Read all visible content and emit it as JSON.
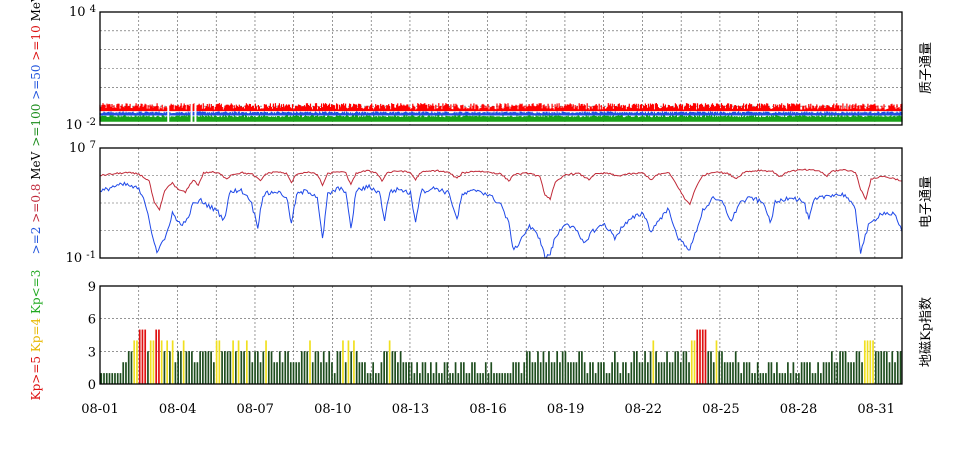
{
  "chart_data": [
    {
      "type": "area",
      "name_cn": "质子通量",
      "yscale": "log",
      "ylim": [
        0.01,
        10000
      ],
      "ytick_labels": [
        {
          "base": "10",
          "exp": "4"
        },
        {
          "base": "10",
          "exp": "-2"
        }
      ],
      "y_axis_label": [
        {
          "text": ">=100",
          "color": "#1a8c1a"
        },
        {
          "text": " >=50",
          "color": "#2255dd"
        },
        {
          "text": " >=10",
          "color": "#dd1111"
        },
        {
          "text": " MeV",
          "color": "#000000"
        }
      ],
      "x_range_days": [
        1,
        32
      ],
      "series": [
        {
          "name": ">=10 MeV",
          "color": "#ff0000",
          "typical": 0.09,
          "low": 0.055
        },
        {
          "name": ">=50 MeV",
          "color": "#1f4fe0",
          "typical": 0.045,
          "low": 0.032
        },
        {
          "name": ">=100 MeV",
          "color": "#18a018",
          "typical": 0.028,
          "low": 0.015
        }
      ],
      "grid": true
    },
    {
      "type": "line",
      "name_cn": "电子通量",
      "yscale": "log",
      "ylim": [
        0.1,
        10000000
      ],
      "ytick_labels": [
        {
          "base": "10",
          "exp": "7"
        },
        {
          "base": "10",
          "exp": "-1"
        }
      ],
      "y_axis_label": [
        {
          "text": ">=2",
          "color": "#2255dd"
        },
        {
          "text": " >=0.8",
          "color": "#c0283a"
        },
        {
          "text": " MeV",
          "color": "#000000"
        }
      ],
      "x_range_days": [
        1,
        32
      ],
      "series": [
        {
          "name": ">=0.8 MeV",
          "color": "#c02a38",
          "keypoints": [
            [
              1.0,
              100000.0
            ],
            [
              1.5,
              130000.0
            ],
            [
              2.0,
              160000.0
            ],
            [
              2.5,
              130000.0
            ],
            [
              2.9,
              40000.0
            ],
            [
              3.1,
              1000.0
            ],
            [
              3.3,
              300.0
            ],
            [
              3.5,
              8000.0
            ],
            [
              3.8,
              30000.0
            ],
            [
              4.0,
              10000.0
            ],
            [
              4.3,
              6000.0
            ],
            [
              4.6,
              50000.0
            ],
            [
              4.8,
              20000.0
            ],
            [
              5.0,
              150000.0
            ],
            [
              5.3,
              180000.0
            ],
            [
              5.6,
              140000.0
            ],
            [
              5.9,
              60000.0
            ],
            [
              6.1,
              120000.0
            ],
            [
              6.5,
              160000.0
            ],
            [
              6.9,
              120000.0
            ],
            [
              7.2,
              40000.0
            ],
            [
              7.4,
              130000.0
            ],
            [
              7.8,
              190000.0
            ],
            [
              8.2,
              140000.0
            ],
            [
              8.4,
              30000.0
            ],
            [
              8.6,
              130000.0
            ],
            [
              9.0,
              180000.0
            ],
            [
              9.4,
              120000.0
            ],
            [
              9.6,
              20000.0
            ],
            [
              9.8,
              130000.0
            ],
            [
              10.2,
              200000.0
            ],
            [
              10.5,
              150000.0
            ],
            [
              10.7,
              20000.0
            ],
            [
              10.9,
              150000.0
            ],
            [
              11.3,
              220000.0
            ],
            [
              11.7,
              160000.0
            ],
            [
              11.9,
              40000.0
            ],
            [
              12.1,
              160000.0
            ],
            [
              12.6,
              220000.0
            ],
            [
              13.0,
              160000.0
            ],
            [
              13.2,
              50000.0
            ],
            [
              13.4,
              170000.0
            ],
            [
              14.0,
              230000.0
            ],
            [
              14.5,
              160000.0
            ],
            [
              14.8,
              60000.0
            ],
            [
              15.0,
              150000.0
            ],
            [
              15.5,
              210000.0
            ],
            [
              16.0,
              180000.0
            ],
            [
              16.5,
              130000.0
            ],
            [
              16.8,
              40000.0
            ],
            [
              17.0,
              120000.0
            ],
            [
              17.6,
              150000.0
            ],
            [
              18.0,
              80000.0
            ],
            [
              18.2,
              4000.0
            ],
            [
              18.4,
              2000.0
            ],
            [
              18.6,
              30000.0
            ],
            [
              19.0,
              120000.0
            ],
            [
              19.5,
              140000.0
            ],
            [
              19.9,
              50000.0
            ],
            [
              20.1,
              120000.0
            ],
            [
              20.6,
              150000.0
            ],
            [
              21.0,
              90000.0
            ],
            [
              21.3,
              120000.0
            ],
            [
              21.7,
              140000.0
            ],
            [
              22.0,
              150000.0
            ],
            [
              22.3,
              50000.0
            ],
            [
              22.6,
              130000.0
            ],
            [
              23.0,
              150000.0
            ],
            [
              23.3,
              20000.0
            ],
            [
              23.6,
              2000.0
            ],
            [
              23.8,
              800.0
            ],
            [
              24.0,
              10000.0
            ],
            [
              24.3,
              100000.0
            ],
            [
              24.8,
              200000.0
            ],
            [
              25.3,
              130000.0
            ],
            [
              25.6,
              60000.0
            ],
            [
              25.9,
              180000.0
            ],
            [
              26.5,
              240000.0
            ],
            [
              27.0,
              200000.0
            ],
            [
              27.3,
              80000.0
            ],
            [
              27.6,
              200000.0
            ],
            [
              28.2,
              260000.0
            ],
            [
              28.8,
              220000.0
            ],
            [
              29.1,
              90000.0
            ],
            [
              29.3,
              210000.0
            ],
            [
              29.8,
              260000.0
            ],
            [
              30.2,
              180000.0
            ],
            [
              30.4,
              10000.0
            ],
            [
              30.6,
              2000.0
            ],
            [
              30.8,
              50000.0
            ],
            [
              31.2,
              90000.0
            ],
            [
              31.7,
              60000.0
            ],
            [
              32.0,
              40000.0
            ]
          ]
        },
        {
          "name": ">=2 MeV",
          "color": "#1f49e8",
          "keypoints": [
            [
              1.0,
              6000.0
            ],
            [
              1.5,
              16000.0
            ],
            [
              2.0,
              22000.0
            ],
            [
              2.5,
              10000.0
            ],
            [
              2.8,
              500.0
            ],
            [
              3.0,
              8
            ],
            [
              3.2,
              0.3
            ],
            [
              3.5,
              2
            ],
            [
              3.8,
              200.0
            ],
            [
              4.0,
              40
            ],
            [
              4.3,
              30
            ],
            [
              4.6,
              800.0
            ],
            [
              4.9,
              1500.0
            ],
            [
              5.2,
              600.0
            ],
            [
              5.5,
              300.0
            ],
            [
              5.8,
              60
            ],
            [
              6.0,
              5000.0
            ],
            [
              6.4,
              10000.0
            ],
            [
              6.8,
              2000.0
            ],
            [
              7.1,
              20
            ],
            [
              7.3,
              4000.0
            ],
            [
              7.8,
              7000.0
            ],
            [
              8.2,
              3000.0
            ],
            [
              8.4,
              30
            ],
            [
              8.6,
              4000.0
            ],
            [
              9.0,
              8000.0
            ],
            [
              9.4,
              3000.0
            ],
            [
              9.6,
              2
            ],
            [
              9.8,
              4000.0
            ],
            [
              10.2,
              11000.0
            ],
            [
              10.5,
              8000.0
            ],
            [
              10.7,
              10
            ],
            [
              10.9,
              8000.0
            ],
            [
              11.4,
              15000.0
            ],
            [
              11.8,
              6000.0
            ],
            [
              12.0,
              60
            ],
            [
              12.2,
              7000.0
            ],
            [
              12.6,
              10000.0
            ],
            [
              13.0,
              5000.0
            ],
            [
              13.2,
              50
            ],
            [
              13.4,
              7000.0
            ],
            [
              14.0,
              12000.0
            ],
            [
              14.5,
              5000.0
            ],
            [
              14.8,
              60
            ],
            [
              15.0,
              4000.0
            ],
            [
              15.6,
              9000.0
            ],
            [
              16.0,
              4000.0
            ],
            [
              16.5,
              800
            ],
            [
              16.8,
              30
            ],
            [
              17.0,
              0.3
            ],
            [
              17.3,
              3
            ],
            [
              17.6,
              20
            ],
            [
              18.0,
              3
            ],
            [
              18.2,
              0.1
            ],
            [
              18.4,
              0.2
            ],
            [
              18.6,
              3
            ],
            [
              19.0,
              40
            ],
            [
              19.4,
              10
            ],
            [
              19.7,
              1
            ],
            [
              20.0,
              8
            ],
            [
              20.5,
              30
            ],
            [
              20.9,
              3
            ],
            [
              21.2,
              20
            ],
            [
              21.6,
              80
            ],
            [
              22.0,
              200
            ],
            [
              22.3,
              8
            ],
            [
              22.6,
              60
            ],
            [
              23.0,
              400
            ],
            [
              23.3,
              3
            ],
            [
              23.6,
              1
            ],
            [
              23.8,
              0.4
            ],
            [
              24.0,
              5
            ],
            [
              24.3,
              300
            ],
            [
              24.7,
              2000.0
            ],
            [
              25.1,
              1000.0
            ],
            [
              25.4,
              40
            ],
            [
              25.7,
              1000.0
            ],
            [
              26.2,
              2500.0
            ],
            [
              26.7,
              800
            ],
            [
              26.9,
              30
            ],
            [
              27.1,
              1000.0
            ],
            [
              27.7,
              3000.0
            ],
            [
              28.2,
              1200.0
            ],
            [
              28.4,
              60
            ],
            [
              28.6,
              1500.0
            ],
            [
              29.2,
              4000.0
            ],
            [
              29.8,
              4000.0
            ],
            [
              30.2,
              300
            ],
            [
              30.4,
              0.3
            ],
            [
              30.7,
              20
            ],
            [
              31.2,
              200
            ],
            [
              31.7,
              150
            ],
            [
              32.0,
              8
            ]
          ]
        }
      ],
      "grid": true
    },
    {
      "type": "bar",
      "name_cn": "地磁Kp指数",
      "ylim": [
        0,
        9
      ],
      "ytick_labels": [
        "0",
        "3",
        "6",
        "9"
      ],
      "y_axis_label": [
        {
          "text": "Kp>=5",
          "color": "#dd1111"
        },
        {
          "text": " Kp=4",
          "color": "#e8b800"
        },
        {
          "text": " Kp<=3",
          "color": "#22aa22"
        }
      ],
      "x_labels": [
        "08-01",
        "08-04",
        "08-07",
        "08-10",
        "08-13",
        "08-16",
        "08-19",
        "08-22",
        "08-25",
        "08-28",
        "08-31"
      ],
      "colors": {
        "quiet": "#1e4d1e",
        "active": "#f0e020",
        "storm": "#e01010"
      },
      "kp_values": [
        1,
        1,
        1,
        1,
        1,
        1,
        1,
        1,
        2,
        2,
        3,
        3,
        4,
        4,
        5,
        5,
        5,
        3,
        4,
        4,
        5,
        5,
        4,
        3,
        4,
        3,
        4,
        2,
        3,
        3,
        4,
        3,
        3,
        3,
        2,
        2,
        3,
        3,
        3,
        3,
        3,
        2,
        4,
        4,
        3,
        3,
        3,
        3,
        4,
        3,
        4,
        3,
        3,
        4,
        3,
        2,
        3,
        3,
        2,
        3,
        4,
        3,
        3,
        2,
        2,
        3,
        2,
        3,
        3,
        2,
        2,
        2,
        2,
        3,
        3,
        3,
        4,
        2,
        3,
        3,
        2,
        3,
        2,
        3,
        2,
        1,
        3,
        3,
        4,
        2,
        4,
        3,
        4,
        3,
        2,
        2,
        2,
        1,
        1,
        2,
        1,
        1,
        2,
        3,
        3,
        4,
        3,
        3,
        2,
        3,
        2,
        2,
        2,
        2,
        1,
        2,
        1,
        2,
        2,
        1,
        2,
        1,
        2,
        1,
        1,
        2,
        2,
        1,
        1,
        2,
        1,
        2,
        2,
        1,
        1,
        2,
        2,
        1,
        1,
        1,
        2,
        1,
        2,
        1,
        1,
        1,
        1,
        1,
        1,
        1,
        2,
        2,
        2,
        1,
        2,
        3,
        3,
        2,
        2,
        3,
        2,
        3,
        2,
        3,
        2,
        2,
        3,
        2,
        3,
        3,
        2,
        2,
        2,
        2,
        3,
        3,
        2,
        1,
        2,
        2,
        1,
        2,
        2,
        2,
        1,
        1,
        2,
        3,
        2,
        1,
        2,
        2,
        1,
        2,
        3,
        3,
        2,
        2,
        3,
        2,
        3,
        4,
        3,
        2,
        2,
        2,
        3,
        2,
        2,
        3,
        3,
        2,
        3,
        3,
        2,
        4,
        4,
        5,
        5,
        5,
        5,
        3,
        3,
        2,
        4,
        3,
        3,
        2,
        2,
        2,
        2,
        3,
        2,
        1,
        2,
        2,
        2,
        1,
        1,
        2,
        1,
        1,
        1,
        2,
        2,
        1,
        2,
        1,
        1,
        1,
        2,
        1,
        2,
        1,
        1,
        2,
        2,
        2,
        2,
        1,
        1,
        2,
        1,
        2,
        2,
        2,
        3,
        2,
        2,
        3,
        3,
        3,
        2,
        2,
        2,
        3,
        3,
        2,
        4,
        4,
        4,
        4,
        3,
        3,
        3,
        3,
        3,
        2,
        3,
        2,
        3,
        3
      ]
    }
  ]
}
